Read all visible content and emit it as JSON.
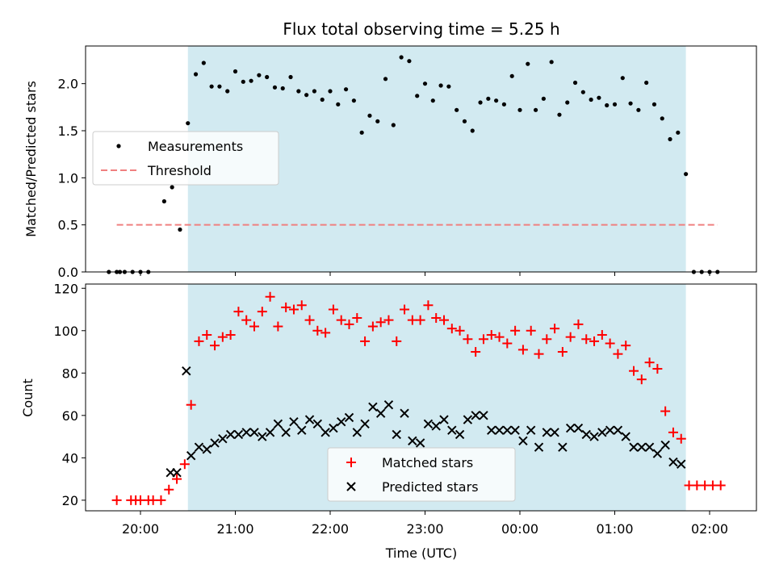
{
  "chart_data": [
    {
      "type": "scatter",
      "title": "Flux total observing time = 5.25 h",
      "ylabel": "Matched/Predicted stars",
      "xlabel": "",
      "ylim": [
        0,
        2.4
      ],
      "yticks": [
        "0.0",
        "0.5",
        "1.0",
        "1.5",
        "2.0"
      ],
      "shaded_span": [
        "20:30",
        "01:45"
      ],
      "threshold": {
        "name": "Threshold",
        "value": 0.5,
        "range": [
          "19:45",
          "02:05"
        ],
        "color": "#f08080"
      },
      "legend": {
        "placement": "center-left",
        "entries": [
          "Measurements",
          "Threshold"
        ]
      },
      "series": [
        {
          "name": "Measurements",
          "color": "#000000",
          "x": [
            "19:40",
            "19:45",
            "19:47",
            "19:50",
            "19:55",
            "20:00",
            "20:05",
            "20:15",
            "20:20",
            "20:25",
            "20:30",
            "20:35",
            "20:40",
            "20:45",
            "20:50",
            "20:55",
            "21:00",
            "21:05",
            "21:10",
            "21:15",
            "21:20",
            "21:25",
            "21:30",
            "21:35",
            "21:40",
            "21:45",
            "21:50",
            "21:55",
            "22:00",
            "22:05",
            "22:10",
            "22:15",
            "22:20",
            "22:25",
            "22:30",
            "22:35",
            "22:40",
            "22:45",
            "22:50",
            "22:55",
            "23:00",
            "23:05",
            "23:10",
            "23:15",
            "23:20",
            "23:25",
            "23:30",
            "23:35",
            "23:40",
            "23:45",
            "23:50",
            "23:55",
            "00:00",
            "00:05",
            "00:10",
            "00:15",
            "00:20",
            "00:25",
            "00:30",
            "00:35",
            "00:40",
            "00:45",
            "00:50",
            "00:55",
            "01:00",
            "01:05",
            "01:10",
            "01:15",
            "01:20",
            "01:25",
            "01:30",
            "01:35",
            "01:40",
            "01:45",
            "01:50",
            "01:55",
            "02:00",
            "02:05"
          ],
          "y": [
            0,
            0,
            0,
            0,
            0,
            0,
            0,
            0.75,
            0.9,
            0.45,
            1.58,
            2.1,
            2.22,
            1.97,
            1.97,
            1.92,
            2.13,
            2.02,
            2.03,
            2.09,
            2.07,
            1.96,
            1.95,
            2.07,
            1.92,
            1.88,
            1.92,
            1.83,
            1.92,
            1.78,
            1.94,
            1.82,
            1.48,
            1.66,
            1.6,
            2.05,
            1.56,
            2.28,
            2.24,
            1.87,
            2.0,
            1.82,
            1.98,
            1.97,
            1.72,
            1.6,
            1.5,
            1.8,
            1.84,
            1.82,
            1.78,
            2.08,
            1.72,
            2.21,
            1.72,
            1.84,
            2.23,
            1.67,
            1.8,
            2.01,
            1.91,
            1.83,
            1.85,
            1.77,
            1.78,
            2.06,
            1.79,
            1.72,
            2.01,
            1.78,
            1.63,
            1.41,
            1.48,
            1.04,
            0,
            0,
            0,
            0
          ]
        }
      ]
    },
    {
      "type": "scatter",
      "title": "",
      "xlabel": "Time (UTC)",
      "ylabel": "Count",
      "ylim": [
        15,
        122
      ],
      "yticks": [
        "20",
        "40",
        "60",
        "80",
        "100",
        "120"
      ],
      "xticks": [
        "20:00",
        "21:00",
        "22:00",
        "23:00",
        "00:00",
        "01:00",
        "02:00"
      ],
      "shaded_span": [
        "20:30",
        "01:45"
      ],
      "legend": {
        "placement": "bottom-center",
        "entries": [
          "Matched stars",
          "Predicted stars"
        ]
      },
      "series": [
        {
          "name": "Matched stars",
          "color": "#ff0000",
          "x": [
            "19:45",
            "19:54",
            "19:57",
            "20:00",
            "20:05",
            "20:08",
            "20:13",
            "20:18",
            "20:23",
            "20:28",
            "20:32",
            "20:37",
            "20:42",
            "20:47",
            "20:52",
            "20:57",
            "21:02",
            "21:07",
            "21:12",
            "21:17",
            "21:22",
            "21:27",
            "21:32",
            "21:37",
            "21:42",
            "21:47",
            "21:52",
            "21:57",
            "22:02",
            "22:07",
            "22:12",
            "22:17",
            "22:22",
            "22:27",
            "22:32",
            "22:37",
            "22:42",
            "22:47",
            "22:52",
            "22:57",
            "23:02",
            "23:07",
            "23:12",
            "23:17",
            "23:22",
            "23:27",
            "23:32",
            "23:37",
            "23:42",
            "23:47",
            "23:52",
            "23:57",
            "00:02",
            "00:07",
            "00:12",
            "00:17",
            "00:22",
            "00:27",
            "00:32",
            "00:37",
            "00:42",
            "00:47",
            "00:52",
            "00:57",
            "01:02",
            "01:07",
            "01:12",
            "01:17",
            "01:22",
            "01:27",
            "01:32",
            "01:37",
            "01:42",
            "01:47",
            "01:52",
            "01:57",
            "02:02",
            "02:07"
          ],
          "y": [
            20,
            20,
            20,
            20,
            20,
            20,
            20,
            25,
            30,
            37,
            65,
            95,
            98,
            93,
            97,
            98,
            109,
            105,
            102,
            109,
            116,
            102,
            111,
            110,
            112,
            105,
            100,
            99,
            110,
            105,
            103,
            106,
            95,
            102,
            104,
            105,
            95,
            110,
            105,
            105,
            112,
            106,
            105,
            101,
            100,
            96,
            90,
            96,
            98,
            97,
            94,
            100,
            91,
            100,
            89,
            96,
            101,
            90,
            97,
            103,
            96,
            95,
            98,
            94,
            89,
            93,
            81,
            77,
            85,
            82,
            62,
            52,
            49,
            27,
            27,
            27,
            27,
            27
          ]
        },
        {
          "name": "Predicted stars",
          "color": "#000000",
          "x": [
            "20:19",
            "20:23",
            "20:29",
            "20:32",
            "20:37",
            "20:42",
            "20:47",
            "20:52",
            "20:57",
            "21:02",
            "21:07",
            "21:12",
            "21:17",
            "21:22",
            "21:27",
            "21:32",
            "21:37",
            "21:42",
            "21:47",
            "21:52",
            "21:57",
            "22:02",
            "22:07",
            "22:12",
            "22:17",
            "22:22",
            "22:27",
            "22:32",
            "22:37",
            "22:42",
            "22:47",
            "22:52",
            "22:57",
            "23:02",
            "23:07",
            "23:12",
            "23:17",
            "23:22",
            "23:27",
            "23:32",
            "23:37",
            "23:42",
            "23:47",
            "23:52",
            "23:57",
            "00:02",
            "00:07",
            "00:12",
            "00:17",
            "00:22",
            "00:27",
            "00:32",
            "00:37",
            "00:42",
            "00:47",
            "00:52",
            "00:57",
            "01:02",
            "01:07",
            "01:12",
            "01:17",
            "01:22",
            "01:27",
            "01:32",
            "01:37",
            "01:42"
          ],
          "y": [
            33,
            33,
            81,
            41,
            45,
            44,
            47,
            49,
            51,
            51,
            52,
            52,
            50,
            52,
            56,
            52,
            57,
            53,
            58,
            56,
            52,
            54,
            57,
            59,
            52,
            56,
            64,
            61,
            65,
            51,
            61,
            48,
            47,
            56,
            55,
            58,
            53,
            51,
            58,
            60,
            60,
            53,
            53,
            53,
            53,
            48,
            53,
            45,
            52,
            52,
            45,
            54,
            54,
            51,
            50,
            52,
            53,
            53,
            50,
            45,
            45,
            45,
            42,
            46,
            38,
            37
          ]
        }
      ]
    }
  ]
}
